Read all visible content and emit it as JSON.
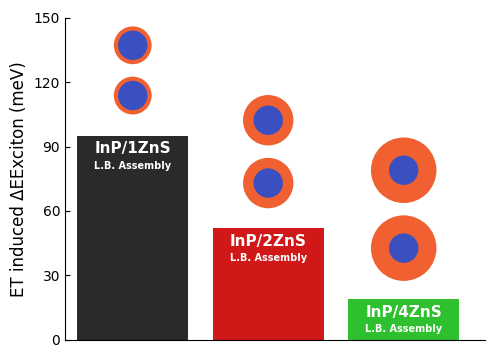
{
  "chart_data": {
    "type": "bar",
    "y_label": "ET induced ΔEExciton (meV)",
    "categories": [
      "InP/1ZnS",
      "InP/2ZnS",
      "InP/4ZnS"
    ],
    "annotations": [
      "L.B. Assembly",
      "L.B. Assembly",
      "L.B. Assembly"
    ],
    "values": [
      95,
      52,
      19
    ],
    "colors": [
      "#2a2a2a",
      "#d01818",
      "#2ec02e"
    ],
    "ylim": [
      0,
      150
    ],
    "yticks": [
      0,
      30,
      60,
      90,
      120,
      150
    ],
    "grid": false,
    "tick_labels": "y"
  }
}
